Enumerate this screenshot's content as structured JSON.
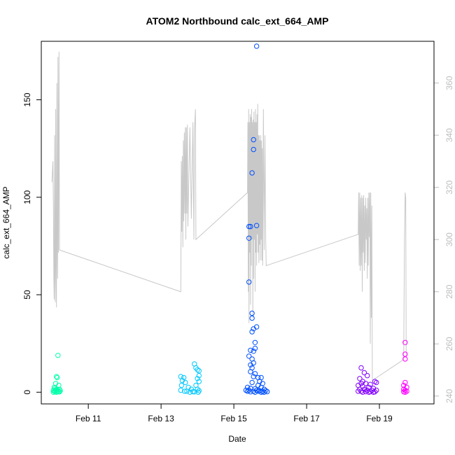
{
  "chart_data": {
    "type": "scatter",
    "title": "ATOM2 Northbound calc_ext_664_AMP",
    "xlabel": "Date",
    "ylabel": "calc_ext_664_AMP",
    "xlim": [
      "2015-02-09T17:00",
      "2015-02-20T12:00"
    ],
    "ylim": [
      -6,
      180
    ],
    "y2lim": [
      237,
      376
    ],
    "x_ticks": [
      {
        "date": "2015-02-11",
        "label": "Feb 11"
      },
      {
        "date": "2015-02-13",
        "label": "Feb 13"
      },
      {
        "date": "2015-02-15",
        "label": "Feb 15"
      },
      {
        "date": "2015-02-17",
        "label": "Feb 17"
      },
      {
        "date": "2015-02-19",
        "label": "Feb 19"
      }
    ],
    "y_ticks": [
      0,
      50,
      100,
      150
    ],
    "y2_ticks": [
      240,
      260,
      280,
      300,
      320,
      340,
      360
    ],
    "grid": false,
    "series": [
      {
        "color": "#00FFAA",
        "points": [
          [
            "2015-02-10T04:00",
            18.9
          ],
          [
            "2015-02-10T03:00",
            8.0
          ],
          [
            "2015-02-10T03:30",
            7.5
          ],
          [
            "2015-02-10T02:30",
            4.5
          ],
          [
            "2015-02-10T04:30",
            3.5
          ],
          [
            "2015-02-10T01:30",
            2.5
          ],
          [
            "2015-02-10T02:00",
            2.0
          ],
          [
            "2015-02-10T03:00",
            1.5
          ],
          [
            "2015-02-10T05:00",
            1.5
          ],
          [
            "2015-02-10T01:00",
            1.0
          ],
          [
            "2015-02-10T02:30",
            1.0
          ],
          [
            "2015-02-10T04:00",
            0.8
          ],
          [
            "2015-02-10T05:30",
            0.8
          ],
          [
            "2015-02-10T01:30",
            0.5
          ],
          [
            "2015-02-10T03:30",
            0.5
          ],
          [
            "2015-02-10T04:30",
            0.3
          ],
          [
            "2015-02-10T02:00",
            0.2
          ],
          [
            "2015-02-10T05:00",
            0.2
          ],
          [
            "2015-02-10T01:00",
            0.0
          ],
          [
            "2015-02-10T03:00",
            0.0
          ]
        ]
      },
      {
        "color": "#00C8FF",
        "points": [
          [
            "2015-02-13T13:00",
            8.0
          ],
          [
            "2015-02-13T15:00",
            7.5
          ],
          [
            "2015-02-13T14:00",
            6.0
          ],
          [
            "2015-02-13T16:00",
            5.0
          ],
          [
            "2015-02-13T13:30",
            3.5
          ],
          [
            "2015-02-13T18:00",
            2.5
          ],
          [
            "2015-02-13T13:00",
            1.0
          ],
          [
            "2015-02-13T15:30",
            0.5
          ],
          [
            "2015-02-13T17:00",
            0.5
          ],
          [
            "2015-02-13T19:00",
            0.0
          ],
          [
            "2015-02-13T20:00",
            1.5
          ],
          [
            "2015-02-13T22:00",
            14.5
          ],
          [
            "2015-02-13T23:00",
            12.5
          ],
          [
            "2015-02-14T00:00",
            11.5
          ],
          [
            "2015-02-14T01:00",
            11.0
          ],
          [
            "2015-02-14T01:00",
            8.5
          ],
          [
            "2015-02-14T00:00",
            7.0
          ],
          [
            "2015-02-14T01:00",
            5.5
          ],
          [
            "2015-02-13T23:00",
            3.5
          ],
          [
            "2015-02-14T00:00",
            1.5
          ],
          [
            "2015-02-13T21:00",
            0.3
          ],
          [
            "2015-02-13T22:00",
            0.2
          ],
          [
            "2015-02-14T00:30",
            0.0
          ],
          [
            "2015-02-14T01:00",
            0.8
          ]
        ]
      },
      {
        "color": "#0050FF",
        "points": [
          [
            "2015-02-15T15:00",
            177.5
          ],
          [
            "2015-02-15T13:00",
            129.5
          ],
          [
            "2015-02-15T13:00",
            124.5
          ],
          [
            "2015-02-15T12:00",
            112.5
          ],
          [
            "2015-02-15T15:00",
            85.5
          ],
          [
            "2015-02-15T11:00",
            85.0
          ],
          [
            "2015-02-15T10:00",
            85.0
          ],
          [
            "2015-02-15T10:00",
            79.0
          ],
          [
            "2015-02-15T10:00",
            56.5
          ],
          [
            "2015-02-15T12:00",
            40.5
          ],
          [
            "2015-02-15T12:00",
            38.0
          ],
          [
            "2015-02-15T15:00",
            33.5
          ],
          [
            "2015-02-15T13:00",
            32.5
          ],
          [
            "2015-02-15T12:00",
            31.0
          ],
          [
            "2015-02-15T14:00",
            25.5
          ],
          [
            "2015-02-15T14:00",
            22.5
          ],
          [
            "2015-02-15T13:00",
            21.0
          ],
          [
            "2015-02-15T11:00",
            21.5
          ],
          [
            "2015-02-15T10:00",
            18.5
          ],
          [
            "2015-02-15T12:00",
            17.0
          ],
          [
            "2015-02-15T13:00",
            15.0
          ],
          [
            "2015-02-15T11:00",
            14.0
          ],
          [
            "2015-02-15T12:00",
            12.5
          ],
          [
            "2015-02-15T11:00",
            10.5
          ],
          [
            "2015-02-15T14:00",
            9.5
          ],
          [
            "2015-02-15T13:00",
            8.0
          ],
          [
            "2015-02-15T16:00",
            7.5
          ],
          [
            "2015-02-15T18:00",
            7.5
          ],
          [
            "2015-02-15T17:00",
            5.5
          ],
          [
            "2015-02-15T12:00",
            5.0
          ],
          [
            "2015-02-15T19:00",
            4.5
          ],
          [
            "2015-02-15T16:00",
            3.5
          ],
          [
            "2015-02-15T09:00",
            2.5
          ],
          [
            "2015-02-15T18:00",
            2.5
          ],
          [
            "2015-02-15T11:00",
            2.0
          ],
          [
            "2015-02-15T14:00",
            1.8
          ],
          [
            "2015-02-15T20:00",
            1.5
          ],
          [
            "2015-02-15T08:00",
            1.0
          ],
          [
            "2015-02-15T10:00",
            1.0
          ],
          [
            "2015-02-15T15:00",
            1.0
          ],
          [
            "2015-02-15T17:00",
            0.8
          ],
          [
            "2015-02-15T21:00",
            0.8
          ],
          [
            "2015-02-15T09:00",
            0.5
          ],
          [
            "2015-02-15T13:00",
            0.5
          ],
          [
            "2015-02-15T16:00",
            0.5
          ],
          [
            "2015-02-15T19:00",
            0.3
          ],
          [
            "2015-02-15T22:00",
            0.3
          ],
          [
            "2015-02-15T11:00",
            0.2
          ],
          [
            "2015-02-15T14:00",
            0.0
          ],
          [
            "2015-02-15T18:00",
            0.0
          ],
          [
            "2015-02-15T20:00",
            0.0
          ]
        ]
      },
      {
        "color": "#8000FF",
        "points": [
          [
            "2015-02-18T12:00",
            12.5
          ],
          [
            "2015-02-18T14:00",
            10.0
          ],
          [
            "2015-02-18T16:00",
            8.5
          ],
          [
            "2015-02-18T11:00",
            7.0
          ],
          [
            "2015-02-18T13:00",
            5.5
          ],
          [
            "2015-02-18T21:00",
            5.5
          ],
          [
            "2015-02-18T22:00",
            5.0
          ],
          [
            "2015-02-18T12:00",
            4.5
          ],
          [
            "2015-02-18T15:00",
            4.5
          ],
          [
            "2015-02-18T18:00",
            4.0
          ],
          [
            "2015-02-18T10:00",
            3.5
          ],
          [
            "2015-02-18T13:00",
            3.0
          ],
          [
            "2015-02-18T17:00",
            2.5
          ],
          [
            "2015-02-18T20:00",
            2.0
          ],
          [
            "2015-02-18T11:00",
            1.5
          ],
          [
            "2015-02-18T14:00",
            1.5
          ],
          [
            "2015-02-18T16:00",
            1.0
          ],
          [
            "2015-02-18T19:00",
            1.0
          ],
          [
            "2015-02-18T22:00",
            1.0
          ],
          [
            "2015-02-18T10:00",
            0.5
          ],
          [
            "2015-02-18T12:00",
            0.5
          ],
          [
            "2015-02-18T15:00",
            0.3
          ],
          [
            "2015-02-18T18:00",
            0.3
          ],
          [
            "2015-02-18T21:00",
            0.2
          ],
          [
            "2015-02-18T13:00",
            0.0
          ],
          [
            "2015-02-18T17:00",
            0.0
          ],
          [
            "2015-02-18T20:00",
            0.0
          ]
        ]
      },
      {
        "color": "#FF00FF",
        "points": [
          [
            "2015-02-19T17:00",
            25.5
          ],
          [
            "2015-02-19T17:00",
            19.5
          ],
          [
            "2015-02-19T17:00",
            17.0
          ],
          [
            "2015-02-19T17:00",
            5.0
          ],
          [
            "2015-02-19T16:00",
            3.5
          ],
          [
            "2015-02-19T18:00",
            2.5
          ],
          [
            "2015-02-19T16:00",
            1.5
          ],
          [
            "2015-02-19T17:00",
            1.0
          ],
          [
            "2015-02-19T18:00",
            0.5
          ],
          [
            "2015-02-19T16:00",
            0.2
          ],
          [
            "2015-02-19T17:00",
            0.0
          ]
        ]
      }
    ],
    "secondary_line": {
      "color": "#c8c8c8",
      "axis": "right",
      "points": [
        [
          "2015-02-10T00:00",
          322
        ],
        [
          "2015-02-10T00:40",
          330
        ],
        [
          "2015-02-10T01:00",
          312
        ],
        [
          "2015-02-10T01:15",
          285
        ],
        [
          "2015-02-10T01:30",
          277
        ],
        [
          "2015-02-10T01:45",
          340
        ],
        [
          "2015-02-10T02:00",
          285
        ],
        [
          "2015-02-10T02:15",
          276
        ],
        [
          "2015-02-10T02:30",
          350
        ],
        [
          "2015-02-10T02:45",
          290
        ],
        [
          "2015-02-10T03:00",
          274
        ],
        [
          "2015-02-10T03:15",
          360
        ],
        [
          "2015-02-10T03:30",
          300
        ],
        [
          "2015-02-10T03:45",
          285
        ],
        [
          "2015-02-10T04:00",
          370
        ],
        [
          "2015-02-10T04:20",
          295
        ],
        [
          "2015-02-10T04:40",
          372
        ],
        [
          "2015-02-10T05:00",
          296
        ],
        [
          "2015-02-13T13:00",
          280
        ],
        [
          "2015-02-13T13:20",
          330
        ],
        [
          "2015-02-13T13:40",
          303
        ],
        [
          "2015-02-13T14:00",
          332
        ],
        [
          "2015-02-13T14:20",
          297
        ],
        [
          "2015-02-13T14:40",
          338
        ],
        [
          "2015-02-13T15:00",
          307
        ],
        [
          "2015-02-13T15:20",
          341
        ],
        [
          "2015-02-13T15:40",
          310
        ],
        [
          "2015-02-13T16:00",
          343
        ],
        [
          "2015-02-13T16:20",
          300
        ],
        [
          "2015-02-13T16:40",
          343
        ],
        [
          "2015-02-13T17:00",
          310
        ],
        [
          "2015-02-13T17:20",
          344
        ],
        [
          "2015-02-13T17:40",
          305
        ],
        [
          "2015-02-13T19:00",
          343
        ],
        [
          "2015-02-13T20:00",
          308
        ],
        [
          "2015-02-13T21:00",
          345
        ],
        [
          "2015-02-13T21:40",
          300
        ],
        [
          "2015-02-13T22:00",
          342
        ],
        [
          "2015-02-13T22:40",
          350
        ],
        [
          "2015-02-13T23:00",
          300
        ],
        [
          "2015-02-15T09:00",
          318
        ],
        [
          "2015-02-15T09:15",
          345
        ],
        [
          "2015-02-15T09:30",
          280
        ],
        [
          "2015-02-15T09:45",
          350
        ],
        [
          "2015-02-15T10:00",
          268
        ],
        [
          "2015-02-15T10:15",
          345
        ],
        [
          "2015-02-15T10:30",
          295
        ],
        [
          "2015-02-15T10:45",
          348
        ],
        [
          "2015-02-15T11:00",
          275
        ],
        [
          "2015-02-15T11:15",
          347
        ],
        [
          "2015-02-15T11:30",
          290
        ],
        [
          "2015-02-15T11:45",
          350
        ],
        [
          "2015-02-15T12:00",
          300
        ],
        [
          "2015-02-15T12:15",
          345
        ],
        [
          "2015-02-15T12:30",
          270
        ],
        [
          "2015-02-15T12:45",
          346
        ],
        [
          "2015-02-15T13:00",
          285
        ],
        [
          "2015-02-15T13:15",
          349
        ],
        [
          "2015-02-15T13:30",
          300
        ],
        [
          "2015-02-15T13:45",
          345
        ],
        [
          "2015-02-15T14:00",
          280
        ],
        [
          "2015-02-15T14:15",
          350
        ],
        [
          "2015-02-15T14:30",
          295
        ],
        [
          "2015-02-15T14:45",
          345
        ],
        [
          "2015-02-15T15:00",
          290
        ],
        [
          "2015-02-15T15:15",
          348
        ],
        [
          "2015-02-15T15:30",
          302
        ],
        [
          "2015-02-15T15:45",
          352
        ],
        [
          "2015-02-15T16:00",
          295
        ],
        [
          "2015-02-15T16:15",
          340
        ],
        [
          "2015-02-15T16:30",
          291
        ],
        [
          "2015-02-15T16:45",
          340
        ],
        [
          "2015-02-15T17:00",
          298
        ],
        [
          "2015-02-15T17:15",
          338
        ],
        [
          "2015-02-15T17:30",
          292
        ],
        [
          "2015-02-15T17:45",
          340
        ],
        [
          "2015-02-15T18:00",
          300
        ],
        [
          "2015-02-15T18:15",
          338
        ],
        [
          "2015-02-15T18:30",
          292
        ],
        [
          "2015-02-15T18:45",
          335
        ],
        [
          "2015-02-15T19:00",
          290
        ],
        [
          "2015-02-15T19:30",
          350
        ],
        [
          "2015-02-15T20:00",
          296
        ],
        [
          "2015-02-15T20:30",
          340
        ],
        [
          "2015-02-15T21:00",
          300
        ],
        [
          "2015-02-15T21:20",
          290
        ],
        [
          "2015-02-18T10:00",
          302
        ],
        [
          "2015-02-18T10:20",
          318
        ],
        [
          "2015-02-18T10:40",
          290
        ],
        [
          "2015-02-18T11:00",
          318
        ],
        [
          "2015-02-18T11:20",
          288
        ],
        [
          "2015-02-18T11:40",
          316
        ],
        [
          "2015-02-18T12:00",
          290
        ],
        [
          "2015-02-18T12:20",
          317
        ],
        [
          "2015-02-18T12:40",
          280
        ],
        [
          "2015-02-18T13:00",
          316
        ],
        [
          "2015-02-18T13:20",
          295
        ],
        [
          "2015-02-18T13:40",
          317
        ],
        [
          "2015-02-18T14:00",
          288
        ],
        [
          "2015-02-18T14:20",
          313
        ],
        [
          "2015-02-18T14:40",
          291
        ],
        [
          "2015-02-18T15:00",
          316
        ],
        [
          "2015-02-18T15:20",
          300
        ],
        [
          "2015-02-18T15:40",
          312
        ],
        [
          "2015-02-18T16:00",
          285
        ],
        [
          "2015-02-18T16:20",
          316
        ],
        [
          "2015-02-18T16:40",
          290
        ],
        [
          "2015-02-18T17:00",
          318
        ],
        [
          "2015-02-18T17:20",
          301
        ],
        [
          "2015-02-18T17:40",
          318
        ],
        [
          "2015-02-18T18:00",
          260
        ],
        [
          "2015-02-18T18:20",
          318
        ],
        [
          "2015-02-18T18:40",
          270
        ],
        [
          "2015-02-18T19:00",
          313
        ],
        [
          "2015-02-18T19:20",
          246
        ],
        [
          "2015-02-19T16:00",
          254
        ],
        [
          "2015-02-19T16:30",
          300
        ],
        [
          "2015-02-19T17:00",
          318
        ],
        [
          "2015-02-19T17:20",
          316
        ],
        [
          "2015-02-19T17:40",
          255
        ]
      ]
    }
  }
}
